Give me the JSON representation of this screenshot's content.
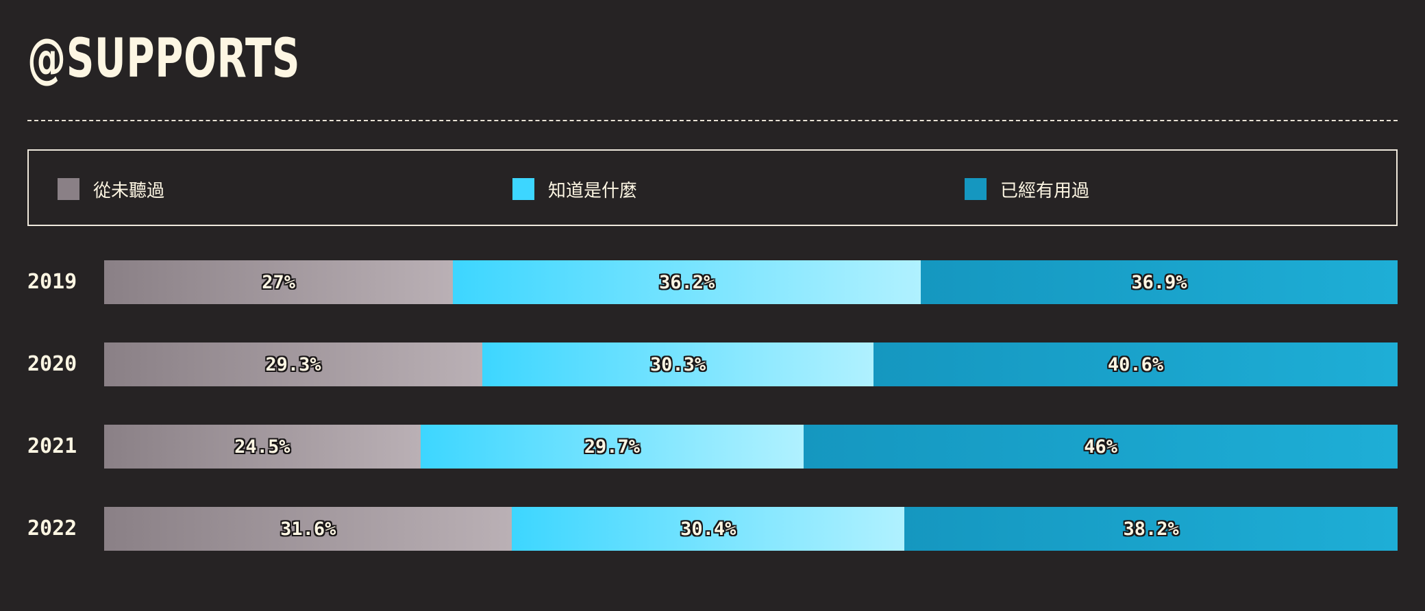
{
  "title": "@SUPPORTS",
  "legend": [
    {
      "label": "從未聽過",
      "color": "#8a8086"
    },
    {
      "label": "知道是什麼",
      "color": "#3dd6ff"
    },
    {
      "label": "已經有用過",
      "color": "#1597c0"
    }
  ],
  "chart_data": {
    "type": "bar",
    "orientation": "horizontal",
    "stacked": true,
    "normalized": true,
    "title": "@SUPPORTS",
    "categories": [
      "2019",
      "2020",
      "2021",
      "2022"
    ],
    "series": [
      {
        "name": "從未聽過",
        "values": [
          27,
          29.3,
          24.5,
          31.6
        ],
        "labels": [
          "27%",
          "29.3%",
          "24.5%",
          "31.6%"
        ]
      },
      {
        "name": "知道是什麼",
        "values": [
          36.2,
          30.3,
          29.7,
          30.4
        ],
        "labels": [
          "36.2%",
          "30.3%",
          "29.7%",
          "30.4%"
        ]
      },
      {
        "name": "已經有用過",
        "values": [
          36.9,
          40.6,
          46,
          38.2
        ],
        "labels": [
          "36.9%",
          "40.6%",
          "46%",
          "38.2%"
        ]
      }
    ],
    "legend_position": "top",
    "grid": false
  }
}
